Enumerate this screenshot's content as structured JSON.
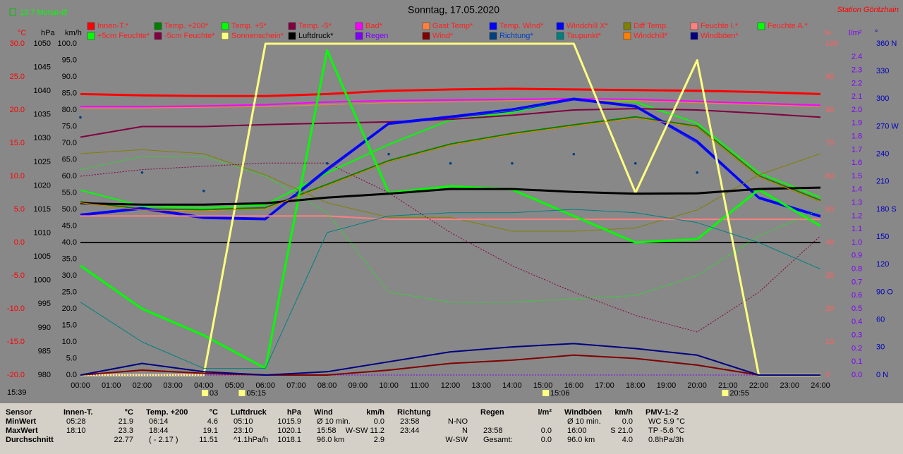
{
  "chart_data": {
    "type": "line",
    "title": "Sonntag, 17.05.2020",
    "month_avg": "13.7 Monat-Ø",
    "station": "Station Göritzhain",
    "clock": "15:39",
    "xlim": [
      0,
      24
    ],
    "xticks": [
      {
        "value": 0,
        "label": "00:00"
      },
      {
        "value": 1,
        "label": "01:00"
      },
      {
        "value": 2,
        "label": "02:00"
      },
      {
        "value": 3,
        "label": "03:00"
      },
      {
        "value": 4,
        "label": "04:00"
      },
      {
        "value": 5,
        "label": "05:00"
      },
      {
        "value": 6,
        "label": "06:00"
      },
      {
        "value": 7,
        "label": "07:00"
      },
      {
        "value": 8,
        "label": "08:00"
      },
      {
        "value": 9,
        "label": "09:00"
      },
      {
        "value": 10,
        "label": "10:00"
      },
      {
        "value": 11,
        "label": "11:00"
      },
      {
        "value": 12,
        "label": "12:00"
      },
      {
        "value": 13,
        "label": "13:00"
      },
      {
        "value": 14,
        "label": "14:00"
      },
      {
        "value": 15,
        "label": "15:00"
      },
      {
        "value": 16,
        "label": "16:00"
      },
      {
        "value": 17,
        "label": "17:00"
      },
      {
        "value": 18,
        "label": "18:00"
      },
      {
        "value": 19,
        "label": "19:00"
      },
      {
        "value": 20,
        "label": "20:00"
      },
      {
        "value": 21,
        "label": "21:00"
      },
      {
        "value": 22,
        "label": "22:00"
      },
      {
        "value": 23,
        "label": "23:00"
      },
      {
        "value": 24,
        "label": "24:00"
      }
    ],
    "annotations": [
      {
        "value": 4.05,
        "label": "03"
      },
      {
        "value": 5.25,
        "label": "05:15"
      },
      {
        "value": 15.1,
        "label": "15:06"
      },
      {
        "value": 20.92,
        "label": "20:55"
      }
    ],
    "ylabel": "°C",
    "ylim": [
      -20,
      30
    ],
    "yticks": [
      {
        "value": -20,
        "label": "-20.0"
      },
      {
        "value": -15,
        "label": "-15.0"
      },
      {
        "value": -10,
        "label": "-10.0"
      },
      {
        "value": -5,
        "label": "-5.0"
      },
      {
        "value": 0,
        "label": "0.0"
      },
      {
        "value": 5,
        "label": "5.0"
      },
      {
        "value": 10,
        "label": "10.0"
      },
      {
        "value": 15,
        "label": "15.0"
      },
      {
        "value": 20,
        "label": "20.0"
      },
      {
        "value": 25,
        "label": "25.0"
      },
      {
        "value": 30,
        "label": "30.0"
      }
    ],
    "y2label": "hPa",
    "y2lim": [
      980,
      1050
    ],
    "y2ticks": [
      980,
      985,
      990,
      995,
      1000,
      1005,
      1010,
      1015,
      1020,
      1025,
      1030,
      1035,
      1040,
      1045,
      1050
    ],
    "y3label": "km/h",
    "y3lim": [
      0,
      100
    ],
    "y3ticks": [
      {
        "value": 0,
        "label": "0.0"
      },
      {
        "value": 5,
        "label": "5.0"
      },
      {
        "value": 10,
        "label": "10.0"
      },
      {
        "value": 15,
        "label": "15.0"
      },
      {
        "value": 20,
        "label": "20.0"
      },
      {
        "value": 25,
        "label": "25.0"
      },
      {
        "value": 30,
        "label": "30.0"
      },
      {
        "value": 35,
        "label": "35.0"
      },
      {
        "value": 40,
        "label": "40.0"
      },
      {
        "value": 45,
        "label": "45.0"
      },
      {
        "value": 50,
        "label": "50.0"
      },
      {
        "value": 55,
        "label": "55.0"
      },
      {
        "value": 60,
        "label": "60.0"
      },
      {
        "value": 65,
        "label": "65.0"
      },
      {
        "value": 70,
        "label": "70.0"
      },
      {
        "value": 75,
        "label": "75.0"
      },
      {
        "value": 80,
        "label": "80.0"
      },
      {
        "value": 85,
        "label": "85.0"
      },
      {
        "value": 90,
        "label": "90.0"
      },
      {
        "value": 95,
        "label": "95.0"
      },
      {
        "value": 100,
        "label": "100.0"
      }
    ],
    "y4label": "%",
    "y4lim": [
      0,
      100
    ],
    "y4ticks": [
      0,
      10,
      20,
      30,
      40,
      50,
      60,
      70,
      80,
      90,
      100
    ],
    "y5label": "l/m²",
    "y5lim": [
      0,
      2.5
    ],
    "y5ticks": [
      {
        "value": 0,
        "label": "0.0"
      },
      0.1,
      0.2,
      0.3,
      0.4,
      0.5,
      0.6,
      0.7,
      0.8,
      0.9,
      {
        "value": 1,
        "label": "1.0"
      },
      1.1,
      1.2,
      1.3,
      1.4,
      1.5,
      1.6,
      1.7,
      1.8,
      1.9,
      {
        "value": 2,
        "label": "2.0"
      },
      2.1,
      2.2,
      2.3,
      2.4
    ],
    "y6label": "°",
    "y6lim": [
      0,
      360
    ],
    "y6ticks": [
      {
        "value": 0,
        "label": "0 N"
      },
      30,
      60,
      {
        "value": 90,
        "label": "90 O"
      },
      120,
      150,
      {
        "value": 180,
        "label": "180 S"
      },
      210,
      240,
      {
        "value": 270,
        "label": "270 W"
      },
      300,
      330,
      {
        "value": 360,
        "label": "360 N"
      }
    ],
    "x": [
      0,
      2,
      4,
      6,
      8,
      10,
      12,
      14,
      16,
      18,
      20,
      22,
      24
    ],
    "series": [
      {
        "name": "Innen-T.*",
        "color": "#ff0000",
        "axis": "y",
        "width": 3,
        "values": [
          22.4,
          22.2,
          22.1,
          22.1,
          22.4,
          22.9,
          23.1,
          23.2,
          23.1,
          23.0,
          22.9,
          22.7,
          22.4
        ]
      },
      {
        "name": "Temp. +200*",
        "color": "#008000",
        "axis": "y",
        "width": 3,
        "values": [
          6.1,
          5.0,
          4.9,
          5.2,
          8.7,
          12.3,
          14.8,
          16.4,
          17.7,
          18.9,
          17.5,
          10.0,
          6.3
        ]
      },
      {
        "name": "Temp. +5*",
        "color": "#00ff00",
        "axis": "y",
        "width": 2,
        "values": [
          7.9,
          5.5,
          5.2,
          5.7,
          10.5,
          14.8,
          18.5,
          19.6,
          21.7,
          21.2,
          18.0,
          10.5,
          6.8
        ]
      },
      {
        "name": "Temp. -5*",
        "color": "#800040",
        "axis": "y",
        "width": 2,
        "values": [
          15.9,
          17.5,
          17.5,
          17.8,
          18.0,
          18.2,
          18.6,
          19.2,
          20.0,
          20.2,
          20.0,
          19.5,
          18.9
        ]
      },
      {
        "name": "Bad*",
        "color": "#ff00ff",
        "axis": "y",
        "width": 2,
        "values": [
          20.5,
          20.5,
          20.6,
          20.8,
          21.2,
          21.4,
          21.5,
          21.6,
          21.7,
          21.6,
          21.3,
          21.0,
          20.7
        ]
      },
      {
        "name": "Gast Temp*",
        "color": "#ff8040",
        "axis": "y",
        "width": 1,
        "values": [
          20.3,
          20.3,
          20.4,
          20.5,
          20.8,
          21.1,
          21.2,
          21.4,
          21.5,
          21.4,
          21.1,
          20.8,
          20.5
        ]
      },
      {
        "name": "Temp. Wind*",
        "color": "#0000ff",
        "axis": "y",
        "width": 3,
        "values": [
          4.2,
          5.2,
          3.8,
          3.6,
          11.1,
          18.0,
          19.0,
          20.1,
          21.7,
          20.6,
          15.3,
          6.8,
          4.0
        ]
      },
      {
        "name": "Windchill X*",
        "color": "#0000ff",
        "axis": "y",
        "width": 1,
        "values": [
          4.0,
          5.0,
          3.6,
          3.4,
          10.8,
          17.8,
          18.8,
          19.8,
          21.5,
          20.4,
          15.0,
          6.6,
          3.8
        ]
      },
      {
        "name": "Diff Temp.",
        "color": "#808000",
        "axis": "y",
        "width": 1,
        "values": [
          13.4,
          14.0,
          13.4,
          10.2,
          6.0,
          3.8,
          3.8,
          1.7,
          1.7,
          2.2,
          4.9,
          10.2,
          13.4
        ]
      },
      {
        "name": "Feuchte I.*",
        "color": "#ff8080",
        "axis": "y4",
        "width": 2,
        "values": [
          48,
          48,
          48,
          48,
          48,
          47,
          47,
          47,
          47,
          47,
          47,
          47,
          47
        ]
      },
      {
        "name": "Feuchte A.*",
        "color": "#00ff00",
        "axis": "y4",
        "width": 1,
        "dash": true,
        "values": [
          62,
          66,
          66,
          60,
          49,
          25,
          22,
          22,
          23,
          24,
          30,
          42,
          50
        ]
      },
      {
        "name": "+5cm Feuchte*",
        "color": "#00ff00",
        "axis": "y4",
        "width": 3,
        "values": [
          33,
          20,
          12,
          2,
          98,
          55,
          57,
          56,
          48,
          40,
          41,
          56,
          45
        ]
      },
      {
        "name": "-5cm Feuchte*",
        "color": "#800040",
        "axis": "y4",
        "width": 1,
        "dash": true,
        "values": [
          60,
          62,
          63,
          64,
          64,
          55,
          43,
          33,
          25,
          18,
          13,
          25,
          42
        ]
      },
      {
        "name": "Sonnenschein*",
        "color": "#ffff80",
        "axis": "y4",
        "width": 3,
        "values": [
          0,
          0,
          0,
          100,
          100,
          100,
          100,
          100,
          100,
          55,
          95,
          0,
          0
        ]
      },
      {
        "name": "Luftdruck*",
        "color": "#000000",
        "axis": "y2",
        "width": 3,
        "values": [
          1016.3,
          1016.0,
          1016.0,
          1016.3,
          1017.5,
          1018.3,
          1019.3,
          1019.3,
          1018.7,
          1018.3,
          1018.4,
          1019.3,
          1019.6
        ]
      },
      {
        "name": "Regen",
        "color": "#8000ff",
        "axis": "y5",
        "width": 1,
        "dash": true,
        "values": [
          0,
          0,
          0,
          0,
          0,
          0,
          0,
          0,
          0,
          0,
          0,
          0,
          0
        ]
      },
      {
        "name": "Wind*",
        "color": "#800000",
        "axis": "y3",
        "width": 2,
        "values": [
          0.0,
          1.5,
          0.5,
          0.0,
          0.0,
          1.5,
          3.5,
          4.5,
          6.0,
          5.0,
          3.0,
          0.0,
          0.0
        ]
      },
      {
        "name": "Richtung*",
        "color": "#004080",
        "axis": "y6",
        "style": "dots",
        "values": [
          280,
          220,
          200,
          null,
          230,
          240,
          230,
          230,
          240,
          230,
          220,
          null,
          null
        ]
      },
      {
        "name": "Taupunkt*",
        "color": "#008080",
        "axis": "y",
        "width": 1,
        "values": [
          -9,
          -15,
          -19,
          -19,
          1.5,
          4,
          4.5,
          4.5,
          5,
          4.5,
          3,
          0,
          -4
        ]
      },
      {
        "name": "Windchill*",
        "color": "#ff8000",
        "axis": "y",
        "width": 1,
        "values": [
          6.0,
          4.9,
          4.8,
          5.1,
          8.6,
          12.2,
          14.7,
          16.3,
          17.6,
          18.8,
          17.4,
          9.9,
          6.2
        ]
      },
      {
        "name": "Windböen*",
        "color": "#000080",
        "axis": "y3",
        "width": 2,
        "values": [
          0.0,
          3.5,
          1.0,
          0.0,
          1.0,
          4.0,
          7.0,
          8.5,
          9.5,
          8.0,
          6.0,
          0.0,
          0.0
        ]
      }
    ]
  },
  "table": {
    "labels": [
      "Sensor",
      "MinWert",
      "MaxWert",
      "Durchschnitt"
    ],
    "columns": [
      {
        "name": "Innen-T.",
        "unit": "°C",
        "rows": [
          [
            "05:28",
            "21.9"
          ],
          [
            "18:10",
            "23.3"
          ],
          [
            null,
            "22.77"
          ]
        ]
      },
      {
        "name": "Temp. +200",
        "unit": "°C",
        "rows": [
          [
            "06:14",
            "4.6"
          ],
          [
            "18:44",
            "19.1"
          ],
          [
            "( - 2.17 )",
            "11.51"
          ]
        ]
      },
      {
        "name": "Luftdruck",
        "unit": "hPa",
        "rows": [
          [
            "05:10",
            "1015.9"
          ],
          [
            "23:10",
            "1020.1"
          ],
          [
            "^1.1hPa/h",
            "1018.1"
          ]
        ]
      },
      {
        "name": "Wind",
        "unit": "km/h",
        "rows": [
          [
            "Ø 10 min.",
            "0.0"
          ],
          [
            "15:58",
            "W-SW 11.2"
          ],
          [
            "96.0 km",
            "2.9"
          ]
        ]
      },
      {
        "name": "Richtung",
        "rows": [
          [
            "23:58",
            "N-NO"
          ],
          [
            "23:44",
            "N"
          ],
          [
            null,
            "W-SW"
          ]
        ]
      },
      {
        "name": "Regen",
        "unit": "l/m²",
        "rows": [
          [
            null,
            null
          ],
          [
            "23:58",
            "0.0"
          ],
          [
            "Gesamt:",
            "0.0"
          ]
        ]
      },
      {
        "name": "Windböen",
        "unit": "km/h",
        "rows": [
          [
            "Ø 10 min.",
            "0.0"
          ],
          [
            "16:00",
            "S 21.0"
          ],
          [
            "96.0 km",
            "4.0"
          ]
        ]
      },
      {
        "name": "PMV-1:-2",
        "rows": [
          [
            "WC 5.9 °C"
          ],
          [
            "TP -5.6 °C"
          ],
          [
            "0.8hPa/3h"
          ]
        ]
      }
    ]
  }
}
